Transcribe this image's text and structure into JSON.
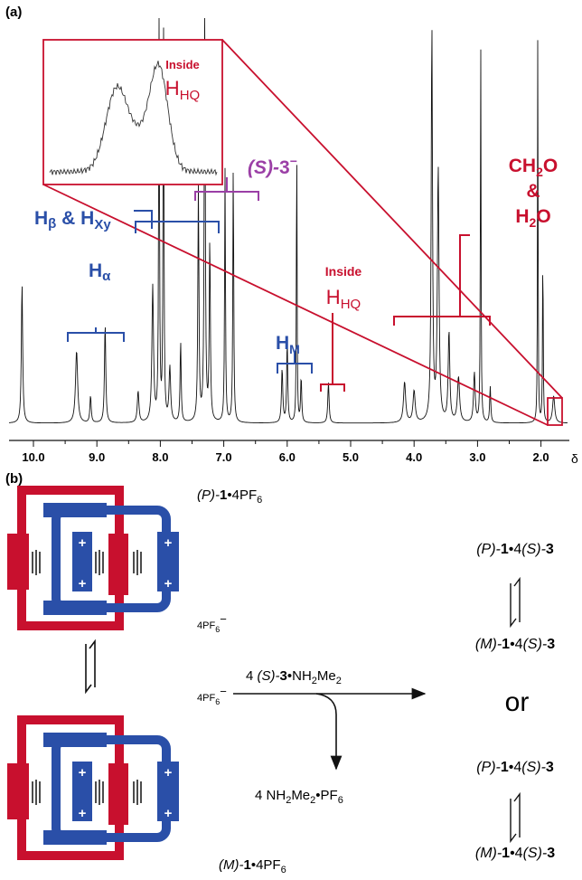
{
  "panel_a": {
    "label": "(a)",
    "inset": {
      "inside": "Inside",
      "h": "H",
      "hq": "HQ"
    },
    "annotations": {
      "s3": [
        "(S)-",
        "3",
        "−"
      ],
      "hbeta": [
        "H",
        "β",
        " & ",
        "H",
        "Xy"
      ],
      "halpha": [
        "H",
        "α"
      ],
      "hm": [
        "H",
        "M"
      ],
      "inside": {
        "inside": "Inside",
        "h": "H",
        "hq": "HQ"
      },
      "ch2o": [
        "CH",
        "2",
        "O"
      ],
      "amp": "&",
      "h2o": [
        "H",
        "2",
        "O"
      ]
    },
    "axis": {
      "ticks": [
        "10.0",
        "9.0",
        "8.0",
        "7.0",
        "6.0",
        "5.0",
        "4.0",
        "3.0",
        "2.0"
      ],
      "unit": "δ"
    }
  },
  "panel_b": {
    "label": "(b)",
    "charge": "+",
    "p_complex": [
      "(P)-",
      "1",
      "•4PF",
      "6"
    ],
    "counterion": [
      "4PF",
      "6",
      "−"
    ],
    "m_complex": [
      "(M)-",
      "1",
      "•4PF",
      "6"
    ],
    "reagent": [
      "4 ",
      "(S)-",
      "3",
      "•NH",
      "2",
      "Me",
      "2"
    ],
    "byproduct": [
      "4 NH",
      "2",
      "Me",
      "2",
      "•PF",
      "6"
    ],
    "products": [
      [
        "(P)-",
        "1",
        "•4",
        "(S)-",
        "3"
      ],
      [
        "(M)-",
        "1",
        "•4",
        "(S)-",
        "3"
      ],
      [
        "(P)-",
        "1",
        "•4",
        "(S)-",
        "3"
      ],
      [
        "(M)-",
        "1",
        "•4",
        "(S)-",
        "3"
      ]
    ],
    "or": "or"
  }
}
